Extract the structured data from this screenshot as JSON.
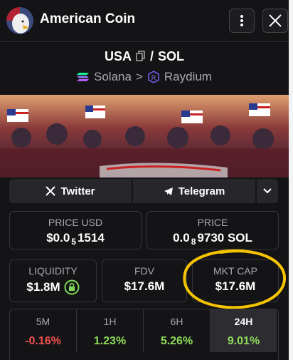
{
  "header": {
    "title": "American Coin"
  },
  "pair": {
    "base": "USA",
    "separator": "/",
    "quote": "SOL",
    "chain": "Solana",
    "chevron": ">",
    "dex": "Raydium"
  },
  "links": [
    "Twitter",
    "Telegram"
  ],
  "price_usd": {
    "label": "PRICE USD",
    "prefix": "$0.0",
    "zeros": "5",
    "digits": "1514"
  },
  "price_native": {
    "label": "PRICE",
    "prefix": "0.0",
    "zeros": "8",
    "digits": "9730 SOL"
  },
  "stats": [
    {
      "label": "LIQUIDITY",
      "value": "$1.8M"
    },
    {
      "label": "FDV",
      "value": "$17.6M"
    },
    {
      "label": "MKT CAP",
      "value": "$17.6M"
    }
  ],
  "changes": [
    {
      "period": "5M",
      "value": "-0.16%"
    },
    {
      "period": "1H",
      "value": "1.23%"
    },
    {
      "period": "6H",
      "value": "5.26%"
    },
    {
      "period": "24H",
      "value": "9.01%"
    }
  ]
}
